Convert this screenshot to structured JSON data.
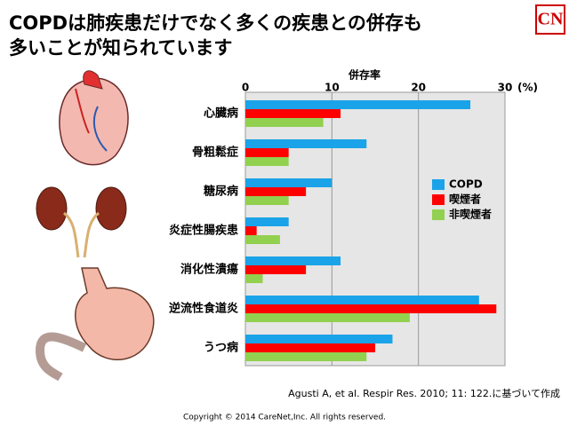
{
  "header": {
    "title_lines": [
      "COPDは肺疾患だけでなく多くの疾患との併存も",
      "多いことが知られています"
    ],
    "logo": "CN"
  },
  "chart_data": {
    "type": "hbar",
    "x_label": "併存率",
    "x_unit": "(%)",
    "categories": [
      "心臓病",
      "骨粗鬆症",
      "糖尿病",
      "炎症性腸疾患",
      "消化性潰瘍",
      "逆流性食道炎",
      "うつ病"
    ],
    "series": [
      {
        "name": "COPD",
        "color": "#1aa3e8",
        "values": [
          26,
          14,
          10,
          5,
          11,
          27,
          17
        ]
      },
      {
        "name": "喫煙者",
        "color": "#ff0000",
        "values": [
          11,
          5,
          7,
          1.3,
          7,
          29,
          15
        ]
      },
      {
        "name": "非喫煙者",
        "color": "#92d050",
        "values": [
          9,
          5,
          5,
          4,
          2,
          19,
          14
        ]
      }
    ],
    "xlim": [
      0,
      30
    ],
    "xticks": [
      0,
      10,
      20,
      30
    ],
    "grid": true
  },
  "citation": "Agusti A, et al. Respir Res. 2010; 11: 122.に基づいて作成",
  "copyright": "Copyright © 2014 CareNet,Inc. All rights reserved."
}
